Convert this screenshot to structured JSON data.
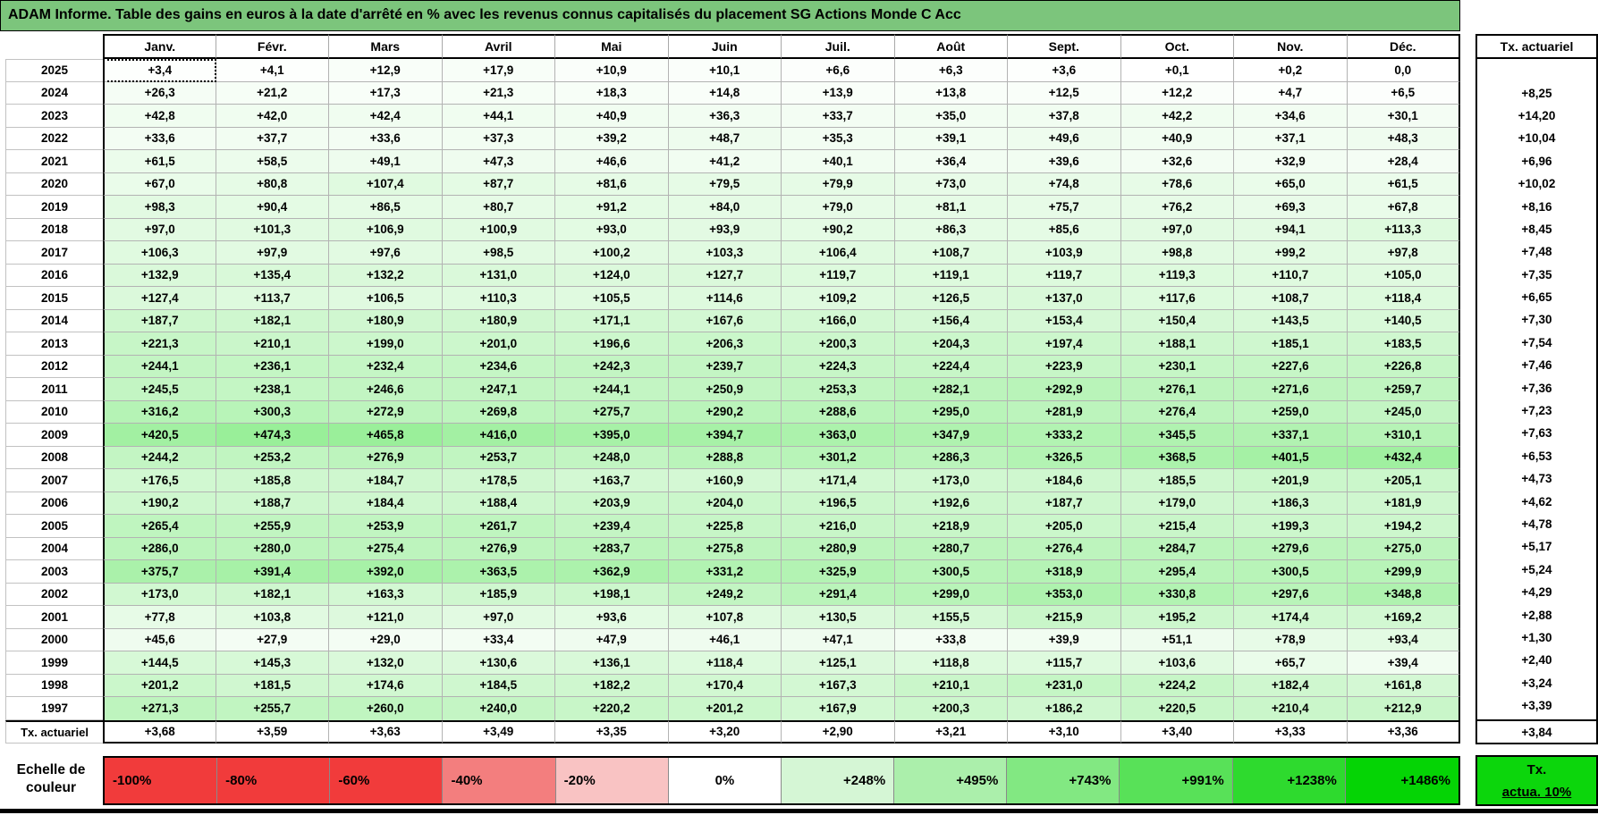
{
  "title": "ADAM Informe. Table des gains en euros à la date d'arrêté en % avec les revenus connus capitalisés du placement SG Actions Monde C Acc",
  "table": {
    "month_headers": [
      "Janv.",
      "Févr.",
      "Mars",
      "Avril",
      "Mai",
      "Juin",
      "Juil.",
      "Août",
      "Sept.",
      "Oct.",
      "Nov.",
      "Déc."
    ],
    "tx_header": "Tx. actuariel",
    "tx_row_label": "Tx. actuariel",
    "selected_cell": {
      "row": 0,
      "col": 0
    },
    "color_scale_max": 1486,
    "rows": [
      {
        "year": "2025",
        "values": [
          "+3,4",
          "+4,1",
          "+12,9",
          "+17,9",
          "+10,9",
          "+10,1",
          "+6,6",
          "+6,3",
          "+3,6",
          "+0,1",
          "+0,2",
          "0,0"
        ],
        "tx": ""
      },
      {
        "year": "2024",
        "values": [
          "+26,3",
          "+21,2",
          "+17,3",
          "+21,3",
          "+18,3",
          "+14,8",
          "+13,9",
          "+13,8",
          "+12,5",
          "+12,2",
          "+4,7",
          "+6,5"
        ],
        "tx": "+8,25"
      },
      {
        "year": "2023",
        "values": [
          "+42,8",
          "+42,0",
          "+42,4",
          "+44,1",
          "+40,9",
          "+36,3",
          "+33,7",
          "+35,0",
          "+37,8",
          "+42,2",
          "+34,6",
          "+30,1"
        ],
        "tx": "+14,20"
      },
      {
        "year": "2022",
        "values": [
          "+33,6",
          "+37,7",
          "+33,6",
          "+37,3",
          "+39,2",
          "+48,7",
          "+35,3",
          "+39,1",
          "+49,6",
          "+40,9",
          "+37,1",
          "+48,3"
        ],
        "tx": "+10,04"
      },
      {
        "year": "2021",
        "values": [
          "+61,5",
          "+58,5",
          "+49,1",
          "+47,3",
          "+46,6",
          "+41,2",
          "+40,1",
          "+36,4",
          "+39,6",
          "+32,6",
          "+32,9",
          "+28,4"
        ],
        "tx": "+6,96"
      },
      {
        "year": "2020",
        "values": [
          "+67,0",
          "+80,8",
          "+107,4",
          "+87,7",
          "+81,6",
          "+79,5",
          "+79,9",
          "+73,0",
          "+74,8",
          "+78,6",
          "+65,0",
          "+61,5"
        ],
        "tx": "+10,02"
      },
      {
        "year": "2019",
        "values": [
          "+98,3",
          "+90,4",
          "+86,5",
          "+80,7",
          "+91,2",
          "+84,0",
          "+79,0",
          "+81,1",
          "+75,7",
          "+76,2",
          "+69,3",
          "+67,8"
        ],
        "tx": "+8,16"
      },
      {
        "year": "2018",
        "values": [
          "+97,0",
          "+101,3",
          "+106,9",
          "+100,9",
          "+93,0",
          "+93,9",
          "+90,2",
          "+86,3",
          "+85,6",
          "+97,0",
          "+94,1",
          "+113,3"
        ],
        "tx": "+8,45"
      },
      {
        "year": "2017",
        "values": [
          "+106,3",
          "+97,9",
          "+97,6",
          "+98,5",
          "+100,2",
          "+103,3",
          "+106,4",
          "+108,7",
          "+103,9",
          "+98,8",
          "+99,2",
          "+97,8"
        ],
        "tx": "+7,48"
      },
      {
        "year": "2016",
        "values": [
          "+132,9",
          "+135,4",
          "+132,2",
          "+131,0",
          "+124,0",
          "+127,7",
          "+119,7",
          "+119,1",
          "+119,7",
          "+119,3",
          "+110,7",
          "+105,0"
        ],
        "tx": "+7,35"
      },
      {
        "year": "2015",
        "values": [
          "+127,4",
          "+113,7",
          "+106,5",
          "+110,3",
          "+105,5",
          "+114,6",
          "+109,2",
          "+126,5",
          "+137,0",
          "+117,6",
          "+108,7",
          "+118,4"
        ],
        "tx": "+6,65"
      },
      {
        "year": "2014",
        "values": [
          "+187,7",
          "+182,1",
          "+180,9",
          "+180,9",
          "+171,1",
          "+167,6",
          "+166,0",
          "+156,4",
          "+153,4",
          "+150,4",
          "+143,5",
          "+140,5"
        ],
        "tx": "+7,30"
      },
      {
        "year": "2013",
        "values": [
          "+221,3",
          "+210,1",
          "+199,0",
          "+201,0",
          "+196,6",
          "+206,3",
          "+200,3",
          "+204,3",
          "+197,4",
          "+188,1",
          "+185,1",
          "+183,5"
        ],
        "tx": "+7,54"
      },
      {
        "year": "2012",
        "values": [
          "+244,1",
          "+236,1",
          "+232,4",
          "+234,6",
          "+242,3",
          "+239,7",
          "+224,3",
          "+224,4",
          "+223,9",
          "+230,1",
          "+227,6",
          "+226,8"
        ],
        "tx": "+7,46"
      },
      {
        "year": "2011",
        "values": [
          "+245,5",
          "+238,1",
          "+246,6",
          "+247,1",
          "+244,1",
          "+250,9",
          "+253,3",
          "+282,1",
          "+292,9",
          "+276,1",
          "+271,6",
          "+259,7"
        ],
        "tx": "+7,36"
      },
      {
        "year": "2010",
        "values": [
          "+316,2",
          "+300,3",
          "+272,9",
          "+269,8",
          "+275,7",
          "+290,2",
          "+288,6",
          "+295,0",
          "+281,9",
          "+276,4",
          "+259,0",
          "+245,0"
        ],
        "tx": "+7,23"
      },
      {
        "year": "2009",
        "values": [
          "+420,5",
          "+474,3",
          "+465,8",
          "+416,0",
          "+395,0",
          "+394,7",
          "+363,0",
          "+347,9",
          "+333,2",
          "+345,5",
          "+337,1",
          "+310,1"
        ],
        "tx": "+7,63"
      },
      {
        "year": "2008",
        "values": [
          "+244,2",
          "+253,2",
          "+276,9",
          "+253,7",
          "+248,0",
          "+288,8",
          "+301,2",
          "+286,3",
          "+326,5",
          "+368,5",
          "+401,5",
          "+432,4"
        ],
        "tx": "+6,53"
      },
      {
        "year": "2007",
        "values": [
          "+176,5",
          "+185,8",
          "+184,7",
          "+178,5",
          "+163,7",
          "+160,9",
          "+171,4",
          "+173,0",
          "+184,6",
          "+185,5",
          "+201,9",
          "+205,1"
        ],
        "tx": "+4,73"
      },
      {
        "year": "2006",
        "values": [
          "+190,2",
          "+188,7",
          "+184,4",
          "+188,4",
          "+203,9",
          "+204,0",
          "+196,5",
          "+192,6",
          "+187,7",
          "+179,0",
          "+186,3",
          "+181,9"
        ],
        "tx": "+4,62"
      },
      {
        "year": "2005",
        "values": [
          "+265,4",
          "+255,9",
          "+253,9",
          "+261,7",
          "+239,4",
          "+225,8",
          "+216,0",
          "+218,9",
          "+205,0",
          "+215,4",
          "+199,3",
          "+194,2"
        ],
        "tx": "+4,78"
      },
      {
        "year": "2004",
        "values": [
          "+286,0",
          "+280,0",
          "+275,4",
          "+276,9",
          "+283,7",
          "+275,8",
          "+280,9",
          "+280,7",
          "+276,4",
          "+284,7",
          "+279,6",
          "+275,0"
        ],
        "tx": "+5,17"
      },
      {
        "year": "2003",
        "values": [
          "+375,7",
          "+391,4",
          "+392,0",
          "+363,5",
          "+362,9",
          "+331,2",
          "+325,9",
          "+300,5",
          "+318,9",
          "+295,4",
          "+300,5",
          "+299,9"
        ],
        "tx": "+5,24"
      },
      {
        "year": "2002",
        "values": [
          "+173,0",
          "+182,1",
          "+163,3",
          "+185,9",
          "+198,1",
          "+249,2",
          "+291,4",
          "+299,0",
          "+353,0",
          "+330,8",
          "+297,6",
          "+348,8"
        ],
        "tx": "+4,29"
      },
      {
        "year": "2001",
        "values": [
          "+77,8",
          "+103,8",
          "+121,0",
          "+97,0",
          "+93,6",
          "+107,8",
          "+130,5",
          "+155,5",
          "+215,9",
          "+195,2",
          "+174,4",
          "+169,2"
        ],
        "tx": "+2,88"
      },
      {
        "year": "2000",
        "values": [
          "+45,6",
          "+27,9",
          "+29,0",
          "+33,4",
          "+47,9",
          "+46,1",
          "+47,1",
          "+33,8",
          "+39,9",
          "+51,1",
          "+78,9",
          "+93,4"
        ],
        "tx": "+1,30"
      },
      {
        "year": "1999",
        "values": [
          "+144,5",
          "+145,3",
          "+132,0",
          "+130,6",
          "+136,1",
          "+118,4",
          "+125,1",
          "+118,8",
          "+115,7",
          "+103,6",
          "+65,7",
          "+39,4"
        ],
        "tx": "+2,40"
      },
      {
        "year": "1998",
        "values": [
          "+201,2",
          "+181,5",
          "+174,6",
          "+184,5",
          "+182,2",
          "+170,4",
          "+167,3",
          "+210,1",
          "+231,0",
          "+224,2",
          "+182,4",
          "+161,8"
        ],
        "tx": "+3,24"
      },
      {
        "year": "1997",
        "values": [
          "+271,3",
          "+255,7",
          "+260,0",
          "+240,0",
          "+220,2",
          "+201,2",
          "+167,9",
          "+200,3",
          "+186,2",
          "+220,5",
          "+210,4",
          "+212,9"
        ],
        "tx": "+3,39"
      }
    ],
    "tx_row_values": [
      "+3,68",
      "+3,59",
      "+3,63",
      "+3,49",
      "+3,35",
      "+3,20",
      "+2,90",
      "+3,21",
      "+3,10",
      "+3,40",
      "+3,33",
      "+3,36"
    ],
    "tx_total": "+3,84"
  },
  "legend": {
    "label_line1": "Echelle de",
    "label_line2": "couleur",
    "cells": [
      {
        "label": "-100%",
        "color": "#f13b3b",
        "align": "left"
      },
      {
        "label": "-80%",
        "color": "#f13b3b",
        "align": "left"
      },
      {
        "label": "-60%",
        "color": "#f13b3b",
        "align": "left"
      },
      {
        "label": "-40%",
        "color": "#f37e7e",
        "align": "left"
      },
      {
        "label": "-20%",
        "color": "#f9c3c3",
        "align": "left"
      },
      {
        "label": "0%",
        "color": "#ffffff",
        "align": "center"
      },
      {
        "label": "+248%",
        "color": "#d5f6d5",
        "align": "right"
      },
      {
        "label": "+495%",
        "color": "#abefab",
        "align": "right"
      },
      {
        "label": "+743%",
        "color": "#82e882",
        "align": "right"
      },
      {
        "label": "+991%",
        "color": "#58e158",
        "align": "right"
      },
      {
        "label": "+1238%",
        "color": "#2eda2e",
        "align": "right"
      },
      {
        "label": "+1486%",
        "color": "#05d405",
        "align": "right"
      }
    ],
    "tx_box": {
      "line1": "Tx.",
      "line2": "actua. 10%",
      "color": "#0cd60c"
    }
  },
  "colors": {
    "title_bg": "#7cc57c",
    "scale_positive_end": "#00d600",
    "grid_line": "#b3b3b3"
  }
}
